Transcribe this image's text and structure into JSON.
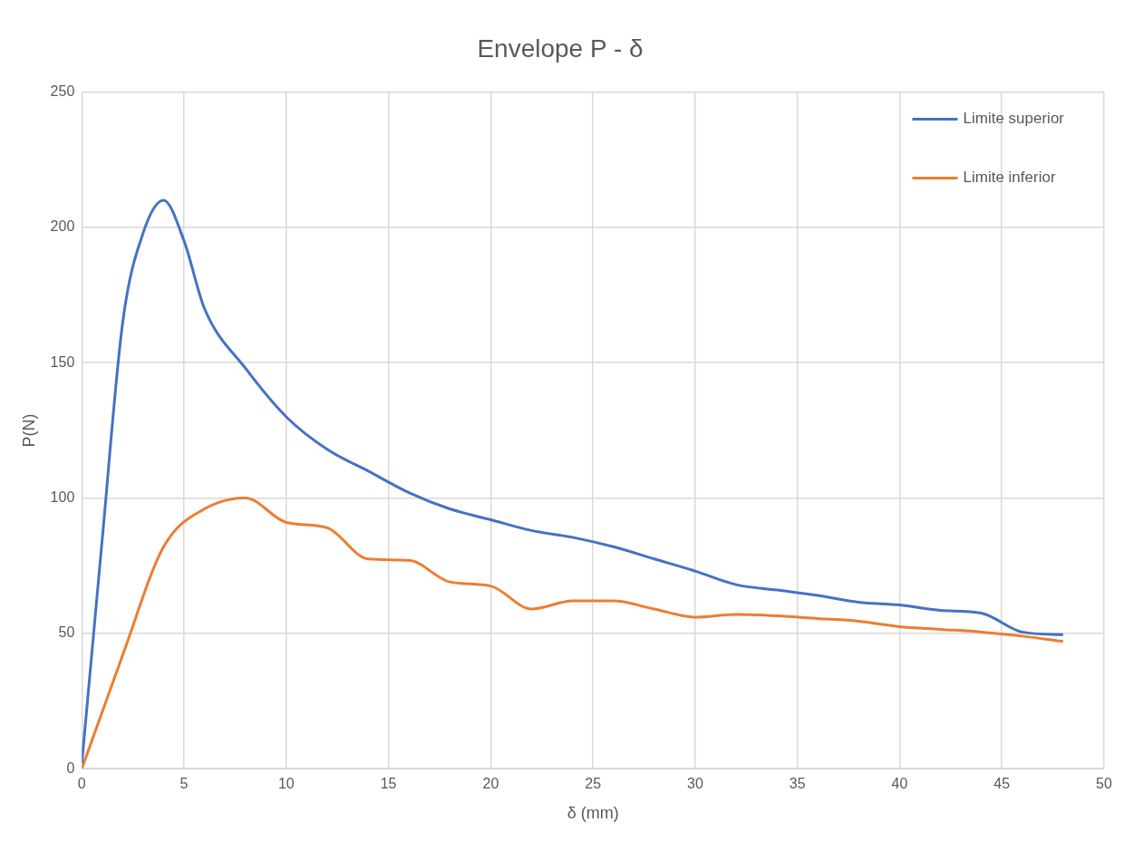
{
  "chart_data": {
    "type": "line",
    "title": "Envelope P - δ",
    "xlabel": "δ (mm)",
    "ylabel": "P(N)",
    "xlim": [
      0,
      50
    ],
    "xticks": [
      0,
      5,
      10,
      15,
      20,
      25,
      30,
      35,
      40,
      45,
      50
    ],
    "ylim": [
      0,
      250
    ],
    "yticks": [
      0,
      50,
      100,
      150,
      200,
      250
    ],
    "grid": true,
    "legend": "top right",
    "marker": "none",
    "line_style": "solid",
    "series": [
      {
        "name": "Limite superior",
        "color": "#4472c4",
        "x": [
          0,
          1,
          2,
          3,
          4,
          5,
          6,
          8,
          10,
          12,
          14,
          16,
          18,
          20,
          22,
          24,
          26,
          28,
          30,
          32,
          34,
          36,
          38,
          40,
          42,
          44,
          46,
          48
        ],
        "values": [
          2,
          85,
          165,
          198,
          210,
          195,
          170,
          148,
          130,
          118,
          110,
          102,
          96,
          92,
          88,
          85.5,
          82,
          77.5,
          73,
          68,
          66,
          64,
          61.5,
          60.5,
          58.5,
          57.5,
          50.5,
          49.5
        ]
      },
      {
        "name": "Limite inferior",
        "color": "#ed7d31",
        "x": [
          0,
          2,
          4,
          6,
          8,
          10,
          12,
          14,
          16,
          18,
          20,
          22,
          24,
          26,
          28,
          30,
          32,
          34,
          36,
          38,
          40,
          42,
          44,
          46,
          48
        ],
        "values": [
          0,
          42,
          82,
          96,
          100,
          91,
          89,
          77.5,
          77,
          69,
          67.5,
          59,
          62,
          62,
          59,
          56,
          57,
          56.5,
          55.5,
          54.5,
          52.5,
          51.5,
          50.5,
          49,
          47
        ]
      }
    ]
  }
}
